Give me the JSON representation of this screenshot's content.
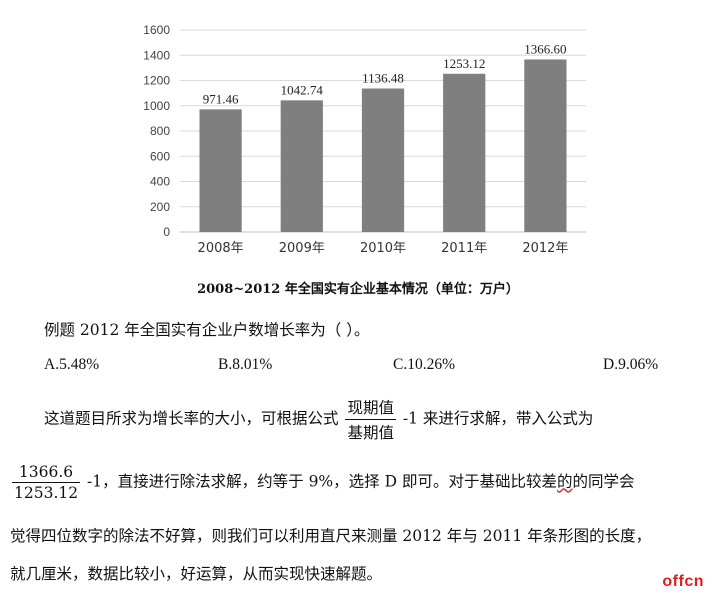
{
  "chart_data": {
    "type": "bar",
    "categories": [
      "2008年",
      "2009年",
      "2010年",
      "2011年",
      "2012年"
    ],
    "values": [
      971.46,
      1042.74,
      1136.48,
      1253.12,
      1366.6
    ],
    "value_labels": [
      "971.46",
      "1042.74",
      "1136.48",
      "1253.12",
      "1366.60"
    ],
    "ylim": [
      0,
      1600
    ],
    "yticks": [
      0,
      200,
      400,
      600,
      800,
      1000,
      1200,
      1400,
      1600
    ],
    "grid": true,
    "bar_color": "#7f7f7f",
    "title": "2008~2012 年全国实有企业基本情况（单位：万户）"
  },
  "question": {
    "stem": "例题  2012 年全国实有企业户数增长率为（  ）。",
    "options": [
      "A.5.48%",
      "B.8.01%",
      "C.10.26%",
      "D.9.06%"
    ]
  },
  "explanation": {
    "p1_before": "这道题目所求为增长率的大小，可根据公式",
    "formula_num": "现期值",
    "formula_den": "基期值",
    "p1_after": "-1 来进行求解，带入公式为",
    "calc_num": "1366.6",
    "calc_den": "1253.12",
    "p2_a": "-1，直接进行除法求解，约等于 9%，选择 D 即可。对于基础比较差",
    "p2_wavy": "的",
    "p2_b": "的同学会",
    "p3": "觉得四位数字的除法不好算，则我们可以利用直尺来测量 2012 年与 2011 年条形图的长度，",
    "p4": "就几厘米，数据比较小，好运算，从而实现快速解题。"
  },
  "logo": "offcn",
  "colors": {
    "logo": "#e02020",
    "bars": "#7f7f7f",
    "grid": "#d9d9d9"
  }
}
